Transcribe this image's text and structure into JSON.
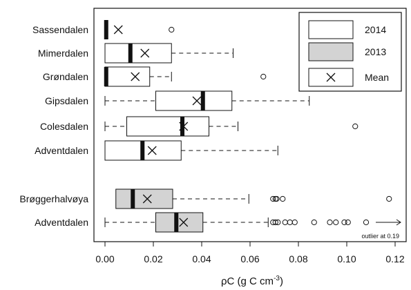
{
  "chart_data": {
    "type": "boxplot",
    "orientation": "horizontal",
    "xlabel": "ρC (g C cm",
    "xlabel_sup": "-3",
    "xlabel_close": ")",
    "xlim": [
      -0.003,
      0.121
    ],
    "xticks": [
      "0.00",
      "0.02",
      "0.04",
      "0.06",
      "0.08",
      "0.10",
      "0.12"
    ],
    "xtick_values": [
      0,
      0.02,
      0.04,
      0.06,
      0.08,
      0.1,
      0.12
    ],
    "grid": false,
    "legend_position": "top-right",
    "legend": [
      {
        "label": "2014",
        "kind": "box",
        "color": "#ffffff"
      },
      {
        "label": "2013",
        "kind": "box",
        "color": "#d3d3d3"
      },
      {
        "label": "Mean",
        "kind": "mean"
      }
    ],
    "colors": {
      "2014": "#ffffff",
      "2013": "#d3d3d3",
      "line": "#111111"
    },
    "boxes": [
      {
        "label": "Sassendalen",
        "year": "2014",
        "whisker_low": 0.0,
        "q1": 0.0,
        "median": 0.0005,
        "q3": 0.0005,
        "whisker_high": 0.0005,
        "mean": 0.0055,
        "outliers": [
          0.0275
        ]
      },
      {
        "label": "Mimerdalen",
        "year": "2014",
        "whisker_low": 0.0,
        "q1": 0.0,
        "median": 0.0105,
        "q3": 0.0275,
        "whisker_high": 0.053,
        "mean": 0.0165,
        "outliers": []
      },
      {
        "label": "Grøndalen",
        "year": "2014",
        "whisker_low": 0.0,
        "q1": 0.0,
        "median": 0.0005,
        "q3": 0.0185,
        "whisker_high": 0.0275,
        "mean": 0.0125,
        "outliers": [
          0.0655
        ]
      },
      {
        "label": "Gipsdalen",
        "year": "2014",
        "whisker_low": 0.0,
        "q1": 0.021,
        "median": 0.0405,
        "q3": 0.0525,
        "whisker_high": 0.0845,
        "mean": 0.038,
        "outliers": []
      },
      {
        "label": "Colesdalen",
        "year": "2014",
        "whisker_low": 0.0,
        "q1": 0.009,
        "median": 0.032,
        "q3": 0.043,
        "whisker_high": 0.055,
        "mean": 0.0325,
        "outliers": [
          0.1035
        ]
      },
      {
        "label": "Adventdalen",
        "year": "2014",
        "whisker_low": 0.0,
        "q1": 0.0,
        "median": 0.0155,
        "q3": 0.0315,
        "whisker_high": 0.0715,
        "mean": 0.0195,
        "outliers": []
      },
      {
        "label": "Brøggerhalvøya",
        "year": "2013",
        "whisker_low": 0.0045,
        "q1": 0.0045,
        "median": 0.0115,
        "q3": 0.028,
        "whisker_high": 0.0595,
        "mean": 0.0175,
        "outliers": [
          0.0695,
          0.0705,
          0.071,
          0.0735,
          0.1175
        ]
      },
      {
        "label": "Adventdalen",
        "year": "2013",
        "whisker_low": 0.0,
        "q1": 0.021,
        "median": 0.0295,
        "q3": 0.0405,
        "whisker_high": 0.0675,
        "mean": 0.0325,
        "outliers": [
          0.0695,
          0.0705,
          0.0715,
          0.0745,
          0.0765,
          0.0785,
          0.0865,
          0.093,
          0.0955,
          0.099,
          0.1005,
          0.108
        ]
      }
    ],
    "annotation": "outlier at 0.19"
  }
}
